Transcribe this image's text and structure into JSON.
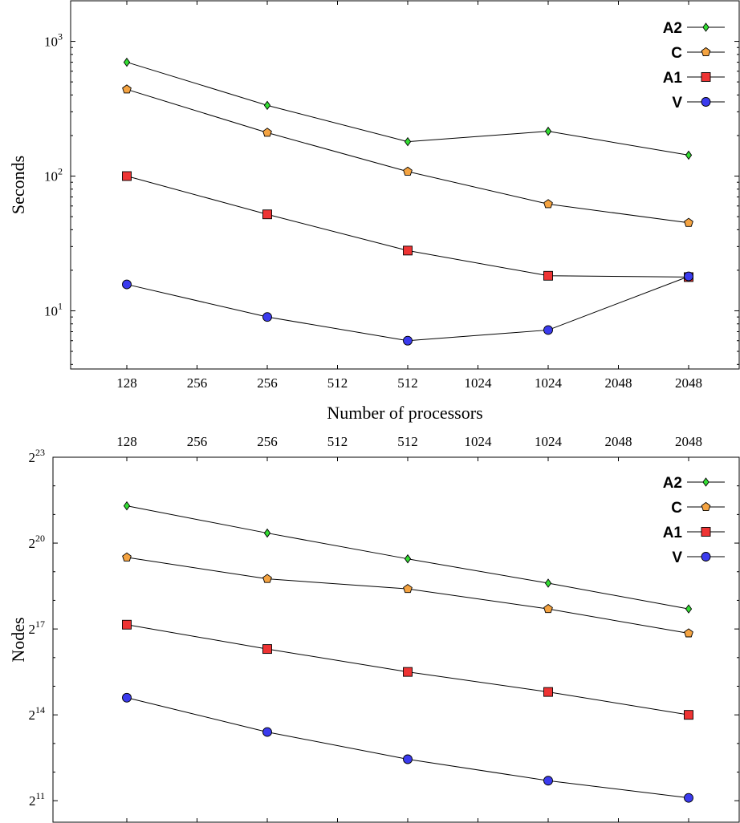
{
  "chart_data": [
    {
      "type": "line",
      "x_tick_labels": [
        "128",
        "256",
        "256",
        "512",
        "512",
        "1024",
        "1024",
        "2048",
        "2048"
      ],
      "x": [
        "128",
        "256",
        "512",
        "1024",
        "2048"
      ],
      "xlabel": "Number of processors",
      "ylabel": "Seconds",
      "yscale": "log10",
      "ylim": [
        3.7,
        2000
      ],
      "y_tick_labels": [
        {
          "base": "10",
          "exp": "1"
        },
        {
          "base": "10",
          "exp": "2"
        },
        {
          "base": "10",
          "exp": "3"
        }
      ],
      "legend_position": "top-right",
      "series": [
        {
          "name": "A2",
          "marker": "diamond",
          "color": "#33dd33",
          "values": [
            700,
            335,
            180,
            215,
            143
          ]
        },
        {
          "name": "C",
          "marker": "pentagon",
          "color": "#f4a341",
          "values": [
            440,
            210,
            108,
            62,
            45
          ]
        },
        {
          "name": "A1",
          "marker": "square",
          "color": "#ee3333",
          "values": [
            100,
            52,
            28,
            18.2,
            17.8
          ]
        },
        {
          "name": "V",
          "marker": "circle",
          "color": "#3b3bee",
          "values": [
            15.7,
            9.0,
            6.0,
            7.2,
            18.0
          ]
        }
      ]
    },
    {
      "type": "line",
      "x_tick_labels": [
        "128",
        "256",
        "256",
        "512",
        "512",
        "1024",
        "1024",
        "2048",
        "2048"
      ],
      "x": [
        "128",
        "256",
        "512",
        "1024",
        "2048"
      ],
      "xlabel": "",
      "ylabel": "Nodes",
      "yscale": "log2",
      "ylim_log2": [
        10.25,
        23
      ],
      "y_tick_labels": [
        {
          "base": "2",
          "exp": "11"
        },
        {
          "base": "2",
          "exp": "14"
        },
        {
          "base": "2",
          "exp": "17"
        },
        {
          "base": "2",
          "exp": "20"
        },
        {
          "base": "2",
          "exp": "23"
        }
      ],
      "legend_position": "top-right",
      "series": [
        {
          "name": "A2",
          "marker": "diamond",
          "color": "#33dd33",
          "log2_values": [
            21.3,
            20.35,
            19.45,
            18.6,
            17.7
          ]
        },
        {
          "name": "C",
          "marker": "pentagon",
          "color": "#f4a341",
          "log2_values": [
            19.5,
            18.75,
            18.4,
            17.7,
            16.85
          ]
        },
        {
          "name": "A1",
          "marker": "square",
          "color": "#ee3333",
          "log2_values": [
            17.15,
            16.3,
            15.5,
            14.8,
            14.0
          ]
        },
        {
          "name": "V",
          "marker": "circle",
          "color": "#3b3bee",
          "log2_values": [
            14.6,
            13.4,
            12.45,
            11.7,
            11.1
          ]
        }
      ]
    }
  ]
}
